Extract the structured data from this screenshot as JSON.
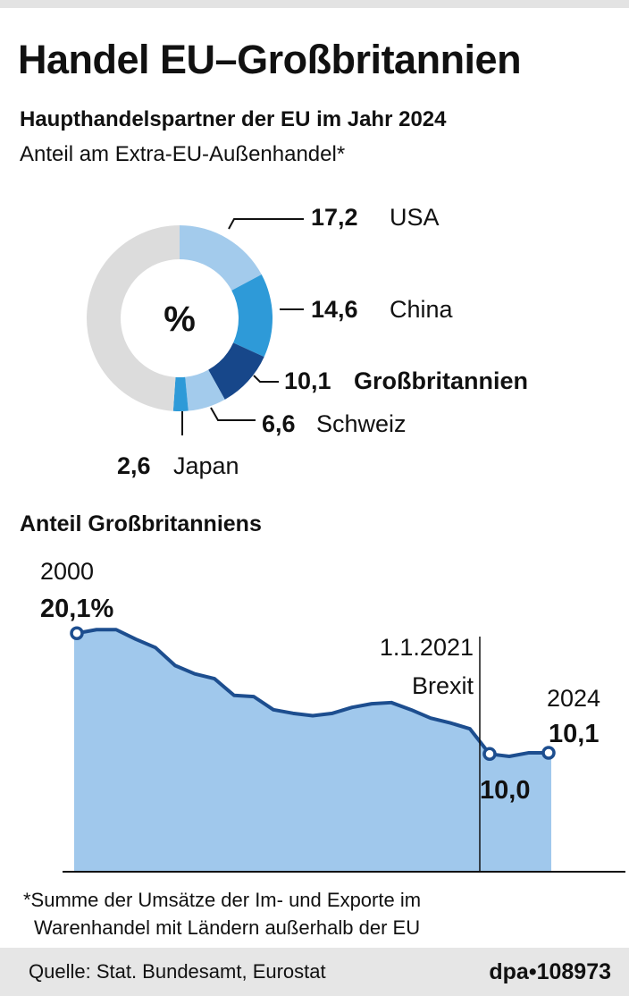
{
  "title": "Handel EU–Großbritannien",
  "subtitle": "Haupthandelspartner der EU im Jahr 2024",
  "subtitle2": "Anteil am Extra-EU-Außenhandel*",
  "section2_title": "Anteil Großbritanniens",
  "footnote_line1": "*Summe der Umsätze der  Im- und Exporte im",
  "footnote_line2": "Warenhandel mit Ländern außerhalb der EU",
  "source": "Quelle: Stat. Bundesamt, Eurostat",
  "credit": "dpa•108973",
  "colors": {
    "light_blue": "#a3cbec",
    "mid_blue": "#2e9ad8",
    "dark_blue": "#17478a",
    "grey": "#dcdcdc",
    "line": "#1d4e8f",
    "area": "#a0c8ec"
  },
  "chart_data": [
    {
      "type": "pie",
      "style": "donut",
      "center_label": "%",
      "slices": [
        {
          "label": "USA",
          "value": 17.2,
          "value_label": "17,2",
          "color": "#a3cbec"
        },
        {
          "label": "China",
          "value": 14.6,
          "value_label": "14,6",
          "color": "#2e9ad8"
        },
        {
          "label": "Großbritannien",
          "value": 10.1,
          "value_label": "10,1",
          "color": "#17478a"
        },
        {
          "label": "Schweiz",
          "value": 6.6,
          "value_label": "6,6",
          "color": "#a3cbec"
        },
        {
          "label": "Japan",
          "value": 2.6,
          "value_label": "2,6",
          "color": "#2e9ad8"
        },
        {
          "label": "",
          "value": 48.9,
          "color": "#dcdcdc"
        }
      ]
    },
    {
      "type": "area",
      "title": "Anteil Großbritanniens",
      "x": [
        2000,
        2001,
        2002,
        2003,
        2004,
        2005,
        2006,
        2007,
        2008,
        2009,
        2010,
        2011,
        2012,
        2013,
        2014,
        2015,
        2016,
        2017,
        2018,
        2019,
        2020,
        2021,
        2022,
        2023,
        2024
      ],
      "values": [
        20.1,
        20.4,
        20.4,
        19.6,
        18.9,
        17.4,
        16.7,
        16.3,
        14.9,
        14.8,
        13.7,
        13.4,
        13.2,
        13.4,
        13.9,
        14.2,
        14.3,
        13.7,
        13.0,
        12.6,
        12.1,
        10.0,
        9.8,
        10.1,
        10.1
      ],
      "ylim": [
        0,
        21
      ],
      "annotations": {
        "start_year": "2000",
        "start_value": "20,1%",
        "brexit_date": "1.1.2021",
        "brexit_label": "Brexit",
        "brexit_x": 2020.5,
        "low_value": "10,0",
        "end_year": "2024",
        "end_value": "10,1"
      },
      "marked_points": [
        2000,
        2021,
        2024
      ]
    }
  ]
}
